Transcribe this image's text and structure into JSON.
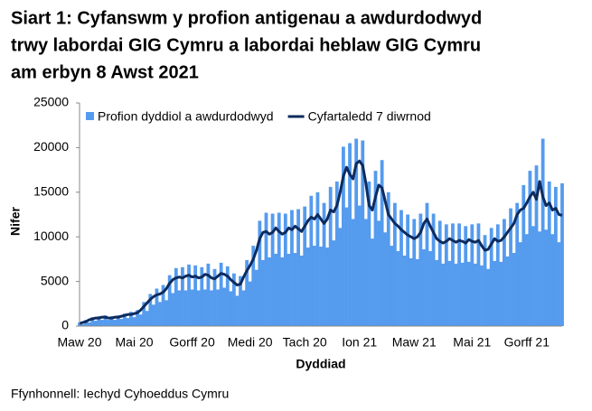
{
  "chart_data": {
    "type": "bar_line",
    "title_lines": [
      "Siart 1: Cyfanswm y profion antigenau a awdurdodwyd",
      "trwy labordai GIG Cymru a labordai heblaw GIG Cymru",
      "am erbyn 8 Awst 2021"
    ],
    "x_label": "Dyddiad",
    "y_label": "Nifer",
    "source": "Ffynhonnell: Iechyd Cyhoeddus Cymru",
    "ylim": [
      0,
      25000
    ],
    "yticks": [
      0,
      5000,
      10000,
      15000,
      20000,
      25000
    ],
    "categories": [
      "Maw 20",
      null,
      null,
      null,
      null,
      null,
      null,
      null,
      null,
      null,
      null,
      null,
      null,
      null,
      null,
      null,
      null,
      "Mai 20",
      null,
      null,
      null,
      null,
      null,
      null,
      null,
      null,
      null,
      null,
      null,
      null,
      null,
      null,
      null,
      null,
      null,
      "Gorff 20",
      null,
      null,
      null,
      null,
      null,
      null,
      null,
      null,
      null,
      null,
      null,
      null,
      null,
      null,
      null,
      null,
      null,
      "Medi 20",
      null,
      null,
      null,
      null,
      null,
      null,
      null,
      null,
      null,
      null,
      null,
      null,
      null,
      null,
      null,
      null,
      "Tach 20",
      null,
      null,
      null,
      null,
      null,
      null,
      null,
      null,
      null,
      null,
      null,
      null,
      null,
      null,
      null,
      null,
      "Ion 21",
      null,
      null,
      null,
      null,
      null,
      null,
      null,
      null,
      null,
      null,
      null,
      null,
      null,
      null,
      null,
      null,
      "Maw 21",
      null,
      null,
      null,
      null,
      null,
      null,
      null,
      null,
      null,
      null,
      null,
      null,
      null,
      null,
      null,
      null,
      null,
      "Mai 21",
      null,
      null,
      null,
      null,
      null,
      null,
      null,
      null,
      null,
      null,
      null,
      null,
      null,
      null,
      null,
      null,
      "Gorff 21",
      null,
      null,
      null,
      null,
      null,
      null,
      null,
      null,
      null,
      null,
      null
    ],
    "series": [
      {
        "name": "Profion dyddiol a awdurdodwyd",
        "kind": "bar",
        "color": "#559bee",
        "values": [
          400,
          200,
          700,
          400,
          1000,
          600,
          1100,
          700,
          1200,
          700,
          1100,
          700,
          1200,
          800,
          1400,
          900,
          1600,
          1000,
          1800,
          1300,
          2700,
          1700,
          3600,
          2400,
          4200,
          2700,
          4600,
          2900,
          5700,
          3700,
          6500,
          4000,
          6600,
          4000,
          6900,
          4100,
          6800,
          4000,
          6600,
          4100,
          7000,
          4000,
          6400,
          4100,
          7100,
          4300,
          6700,
          3900,
          5900,
          3400,
          5600,
          4000,
          7400,
          5000,
          9000,
          6300,
          11800,
          7400,
          12700,
          7700,
          12600,
          8100,
          12700,
          7700,
          12600,
          8100,
          13000,
          8200,
          13100,
          7900,
          13400,
          8800,
          14600,
          9000,
          15000,
          8900,
          13800,
          8800,
          15600,
          9600,
          16200,
          11000,
          20100,
          13300,
          20500,
          12000,
          21000,
          13500,
          20800,
          12000,
          16200,
          9800,
          17400,
          11800,
          18600,
          10500,
          15000,
          9000,
          13800,
          8400,
          13000,
          7900,
          12500,
          7600,
          12000,
          7500,
          12600,
          8600,
          13800,
          8400,
          12600,
          7400,
          11800,
          7000,
          11400,
          7300,
          11500,
          7000,
          11500,
          7100,
          11200,
          7200,
          11400,
          7000,
          11500,
          6800,
          10200,
          6400,
          11000,
          7300,
          11400,
          7200,
          12000,
          7800,
          13200,
          8200,
          13800,
          9400,
          15800,
          10300,
          17400,
          11200,
          18000,
          10600,
          21000,
          10800,
          16200,
          10300,
          15600,
          9400,
          16000
        ]
      },
      {
        "name": "Cyfartaledd 7 diwrnod",
        "kind": "line",
        "color": "#0d2b5e",
        "values": [
          300,
          400,
          500,
          700,
          800,
          900,
          900,
          1000,
          1000,
          900,
          900,
          1000,
          1000,
          1100,
          1200,
          1300,
          1300,
          1400,
          1500,
          1800,
          2200,
          2600,
          3000,
          3300,
          3500,
          3600,
          3800,
          4200,
          4800,
          5200,
          5400,
          5500,
          5400,
          5600,
          5700,
          5500,
          5600,
          5400,
          5500,
          5800,
          5700,
          5400,
          5300,
          5600,
          5900,
          5800,
          5600,
          5200,
          4900,
          4600,
          4700,
          5500,
          6200,
          6800,
          7500,
          8500,
          9800,
          10500,
          10600,
          10300,
          10500,
          11000,
          10600,
          10300,
          10500,
          11000,
          10800,
          11200,
          10900,
          10600,
          11200,
          11800,
          12200,
          12000,
          12500,
          12000,
          11500,
          12000,
          13000,
          12800,
          13500,
          15000,
          16800,
          17800,
          17000,
          16500,
          18200,
          18500,
          18000,
          16000,
          13500,
          13000,
          14500,
          15800,
          15500,
          14000,
          12500,
          12000,
          11500,
          11200,
          10800,
          10500,
          10200,
          10000,
          9800,
          10000,
          10500,
          11500,
          12000,
          11200,
          10500,
          9800,
          9500,
          9300,
          9500,
          9800,
          9600,
          9400,
          9600,
          9500,
          9300,
          9700,
          9500,
          9400,
          9600,
          9000,
          8500,
          8600,
          9200,
          9800,
          9500,
          9600,
          10000,
          10500,
          11000,
          11500,
          12500,
          13000,
          13200,
          13800,
          14500,
          15000,
          14200,
          16200,
          14500,
          13500,
          13800,
          13000,
          13200,
          12500,
          12400
        ]
      }
    ]
  }
}
